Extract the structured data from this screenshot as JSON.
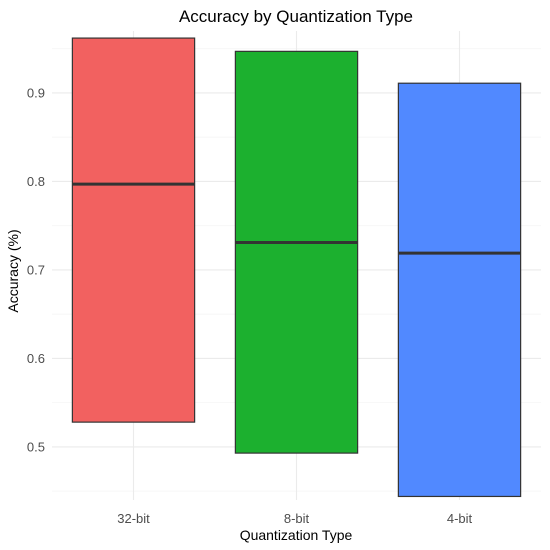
{
  "chart_data": {
    "type": "box",
    "title": "Accuracy by Quantization Type",
    "xlabel": "Quantization Type",
    "ylabel": "Accuracy (%)",
    "categories": [
      "32-bit",
      "8-bit",
      "4-bit"
    ],
    "ylim": [
      0.44,
      0.97
    ],
    "yticks": [
      0.5,
      0.6,
      0.7,
      0.8,
      0.9
    ],
    "ytick_labels": [
      "0.5",
      "0.6",
      "0.7",
      "0.8",
      "0.9"
    ],
    "boxes": [
      {
        "category": "32-bit",
        "q1": 0.528,
        "median": 0.797,
        "q3": 0.962,
        "color": "#F26160"
      },
      {
        "category": "8-bit",
        "q1": 0.493,
        "median": 0.731,
        "q3": 0.947,
        "color": "#1CB02F"
      },
      {
        "category": "4-bit",
        "q1": 0.444,
        "median": 0.719,
        "q3": 0.911,
        "color": "#5189FF"
      }
    ],
    "grid": true,
    "legend": false
  }
}
